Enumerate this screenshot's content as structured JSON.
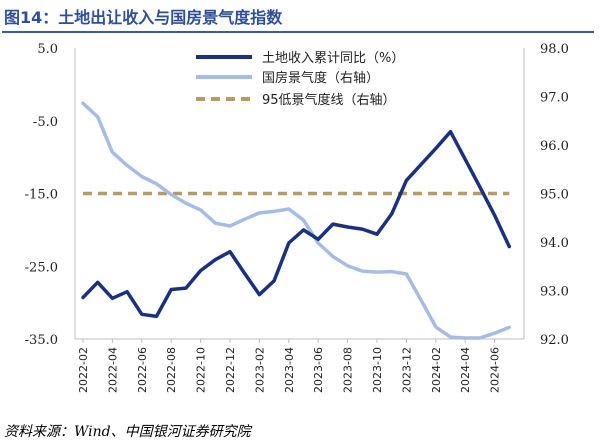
{
  "figure": {
    "title": "图14：土地出让收入与国房景气度指数",
    "source": "资料来源：Wind、中国银河证券研究院"
  },
  "chart_data": {
    "type": "line",
    "categories": [
      "2022-02",
      "2022-03",
      "2022-04",
      "2022-05",
      "2022-06",
      "2022-07",
      "2022-08",
      "2022-09",
      "2022-10",
      "2022-11",
      "2022-12",
      "2023-01",
      "2023-02",
      "2023-03",
      "2023-04",
      "2023-05",
      "2023-06",
      "2023-07",
      "2023-08",
      "2023-09",
      "2023-10",
      "2023-11",
      "2023-12",
      "2024-01",
      "2024-02",
      "2024-03",
      "2024-04",
      "2024-05",
      "2024-06",
      "2024-07"
    ],
    "x_tick_labels": [
      "2022-02",
      "2022-04",
      "2022-06",
      "2022-08",
      "2022-10",
      "2022-12",
      "2023-02",
      "2023-04",
      "2023-06",
      "2023-08",
      "2023-10",
      "2023-12",
      "2024-02",
      "2024-04",
      "2024-06"
    ],
    "y_left": {
      "ticks": [
        5.0,
        -5.0,
        -15.0,
        -25.0,
        -35.0
      ],
      "tick_labels": [
        "5.0",
        "-5.0",
        "-15.0",
        "-25.0",
        "-35.0"
      ],
      "range": [
        -35,
        5
      ]
    },
    "y_right": {
      "ticks": [
        98.0,
        97.0,
        96.0,
        95.0,
        94.0,
        93.0,
        92.0
      ],
      "tick_labels": [
        "98.0",
        "97.0",
        "96.0",
        "95.0",
        "94.0",
        "93.0",
        "92.0"
      ],
      "range": [
        92,
        98
      ]
    },
    "series": [
      {
        "name": "土地收入累计同比（%）",
        "axis": "left",
        "color": "#1a3180",
        "style": "solid",
        "values": [
          -29.3,
          -27.2,
          -29.4,
          -28.5,
          -31.6,
          -31.9,
          -28.2,
          -28.0,
          -25.6,
          -24.1,
          -23.0,
          -26.0,
          -28.9,
          -27.0,
          -21.8,
          -20.0,
          -21.3,
          -19.2,
          -19.6,
          -19.9,
          -20.6,
          -17.8,
          -13.2,
          -11.0,
          -8.8,
          -6.5,
          -10.3,
          -14.1,
          -18.0,
          -22.3
        ]
      },
      {
        "name": "国房景气度（右轴）",
        "axis": "right",
        "color": "#a5bde3",
        "style": "solid",
        "values": [
          96.86,
          96.58,
          95.85,
          95.58,
          95.35,
          95.2,
          94.98,
          94.8,
          94.66,
          94.39,
          94.33,
          94.47,
          94.6,
          94.63,
          94.68,
          94.45,
          93.98,
          93.7,
          93.51,
          93.4,
          93.38,
          93.39,
          93.34,
          92.8,
          92.25,
          92.04,
          92.02,
          92.02,
          92.12,
          92.24
        ]
      },
      {
        "name": "95低景气度线（右轴）",
        "axis": "right",
        "color": "#b89a64",
        "style": "dashed",
        "values": [
          95,
          95,
          95,
          95,
          95,
          95,
          95,
          95,
          95,
          95,
          95,
          95,
          95,
          95,
          95,
          95,
          95,
          95,
          95,
          95,
          95,
          95,
          95,
          95,
          95,
          95,
          95,
          95,
          95,
          95
        ]
      }
    ],
    "legend_position": "top-center",
    "grid": false
  }
}
